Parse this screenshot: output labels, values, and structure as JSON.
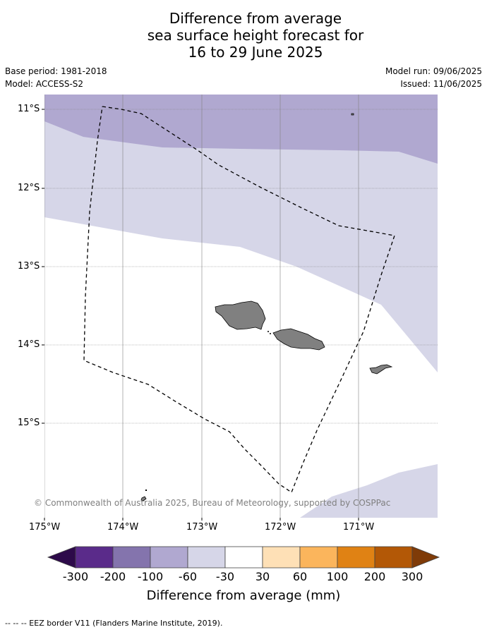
{
  "title": {
    "line1": "Difference from average",
    "line2": "sea surface height forecast for",
    "line3": "16 to 29 June 2025"
  },
  "meta": {
    "base_period": "Base period: 1981-2018",
    "model": "Model: ACCESS-S2",
    "model_run": "Model run: 09/06/2025",
    "issued": "Issued: 11/06/2025"
  },
  "map": {
    "lon_range": [
      -175.0,
      -170.0
    ],
    "lat_range": [
      -16.2,
      -10.8
    ],
    "lat_labels": [
      "11°S",
      "12°S",
      "13°S",
      "14°S",
      "15°S"
    ],
    "lon_labels": [
      "175°W",
      "174°W",
      "173°W",
      "172°W",
      "171°W"
    ],
    "land_color": "#808080",
    "copyright": "© Commonwealth of Australia 2025, Bureau of Meteorology, supported by COSPPac"
  },
  "colorbar": {
    "title": "Difference from average (mm)",
    "tick_labels": [
      "-300",
      "-200",
      "-100",
      "-60",
      "-30",
      "30",
      "60",
      "100",
      "200",
      "300"
    ],
    "colors": [
      "#2d0a4a",
      "#5a2b8a",
      "#8474ad",
      "#b0a8d0",
      "#d6d6e8",
      "#ffffff",
      "#fee0b6",
      "#fbb55c",
      "#e08214",
      "#b35806",
      "#7f3b08"
    ]
  },
  "footnote": "--  --  -- EEZ border V11 (Flanders Marine Institute, 2019)."
}
